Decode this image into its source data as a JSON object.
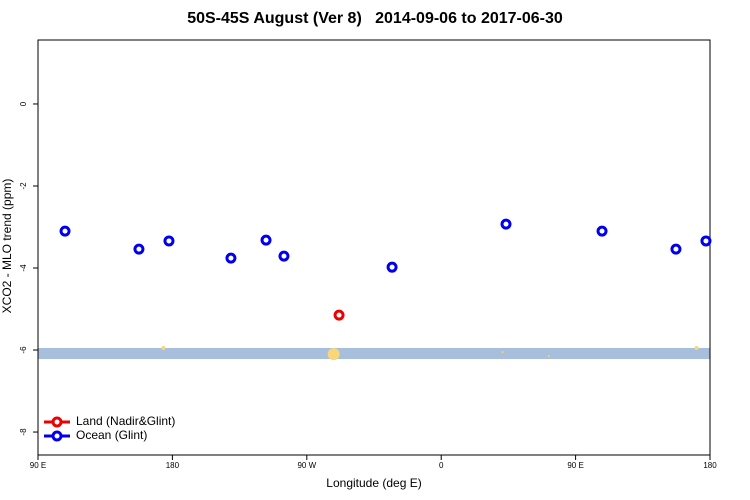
{
  "chart_data": {
    "type": "scatter",
    "title": "50S-45S August (Ver 8)   2014-09-06 to 2017-06-30",
    "xlabel": "Longitude (deg E)",
    "ylabel": "XCO2 - MLO trend (ppm)",
    "xlim": [
      90,
      540
    ],
    "ylim": [
      -8.56,
      1.56
    ],
    "xticks": [
      {
        "value": 90,
        "label": "90 E"
      },
      180,
      {
        "value": 270,
        "label": "90 W"
      },
      {
        "value": 360,
        "label": "0"
      },
      {
        "value": 450,
        "label": "90 E"
      },
      {
        "value": 540,
        "label": "180"
      }
    ],
    "yticks": [
      0,
      -2,
      -4,
      -6,
      -8
    ],
    "legend": "bottom-left",
    "band": {
      "y": [
        -5.95,
        -6.22
      ],
      "color": "#a7bedc"
    },
    "highlights": {
      "color": "#f8d778",
      "x": [
        174,
        288,
        401,
        432,
        531
      ],
      "y": [
        -5.95,
        -6.1,
        -6.05,
        -6.15,
        -5.95
      ],
      "size": [
        2,
        6,
        1,
        1,
        2
      ]
    },
    "series": [
      {
        "name": "Land (Nadir&Glint)",
        "color": "#ee0000",
        "x": [
          291.6
        ],
        "y": [
          -5.15
        ]
      },
      {
        "name": "Ocean (Glint)",
        "color": "#0000ee",
        "x": [
          108.1,
          157.6,
          177.7,
          219.2,
          242.7,
          254.7,
          327.1,
          403.4,
          467.7,
          517.2,
          537.3
        ],
        "y": [
          -3.1,
          -3.54,
          -3.34,
          -3.76,
          -3.32,
          -3.71,
          -3.98,
          -2.93,
          -3.1,
          -3.54,
          -3.34
        ]
      }
    ]
  }
}
